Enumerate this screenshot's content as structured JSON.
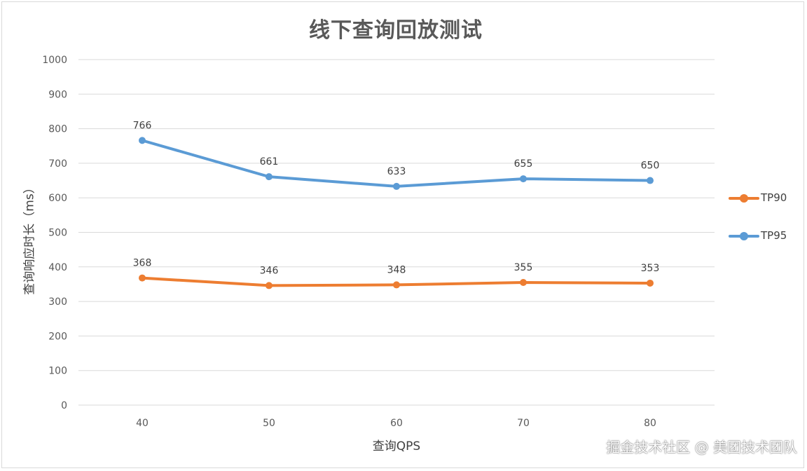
{
  "chart_data": {
    "type": "line",
    "title": "线下查询回放测试",
    "xlabel": "查询QPS",
    "ylabel": "查询响应时长（ms）",
    "categories": [
      "40",
      "50",
      "60",
      "70",
      "80"
    ],
    "ylim": [
      0,
      1000
    ],
    "yticks": [
      0,
      100,
      200,
      300,
      400,
      500,
      600,
      700,
      800,
      900,
      1000
    ],
    "grid": true,
    "legend_position": "right",
    "series": [
      {
        "name": "TP90",
        "color": "#ed7d31",
        "values": [
          368,
          346,
          348,
          355,
          353
        ]
      },
      {
        "name": "TP95",
        "color": "#5b9bd5",
        "values": [
          766,
          661,
          633,
          655,
          650
        ]
      }
    ]
  },
  "watermark": "掘金技术社区 @ 美团技术团队"
}
